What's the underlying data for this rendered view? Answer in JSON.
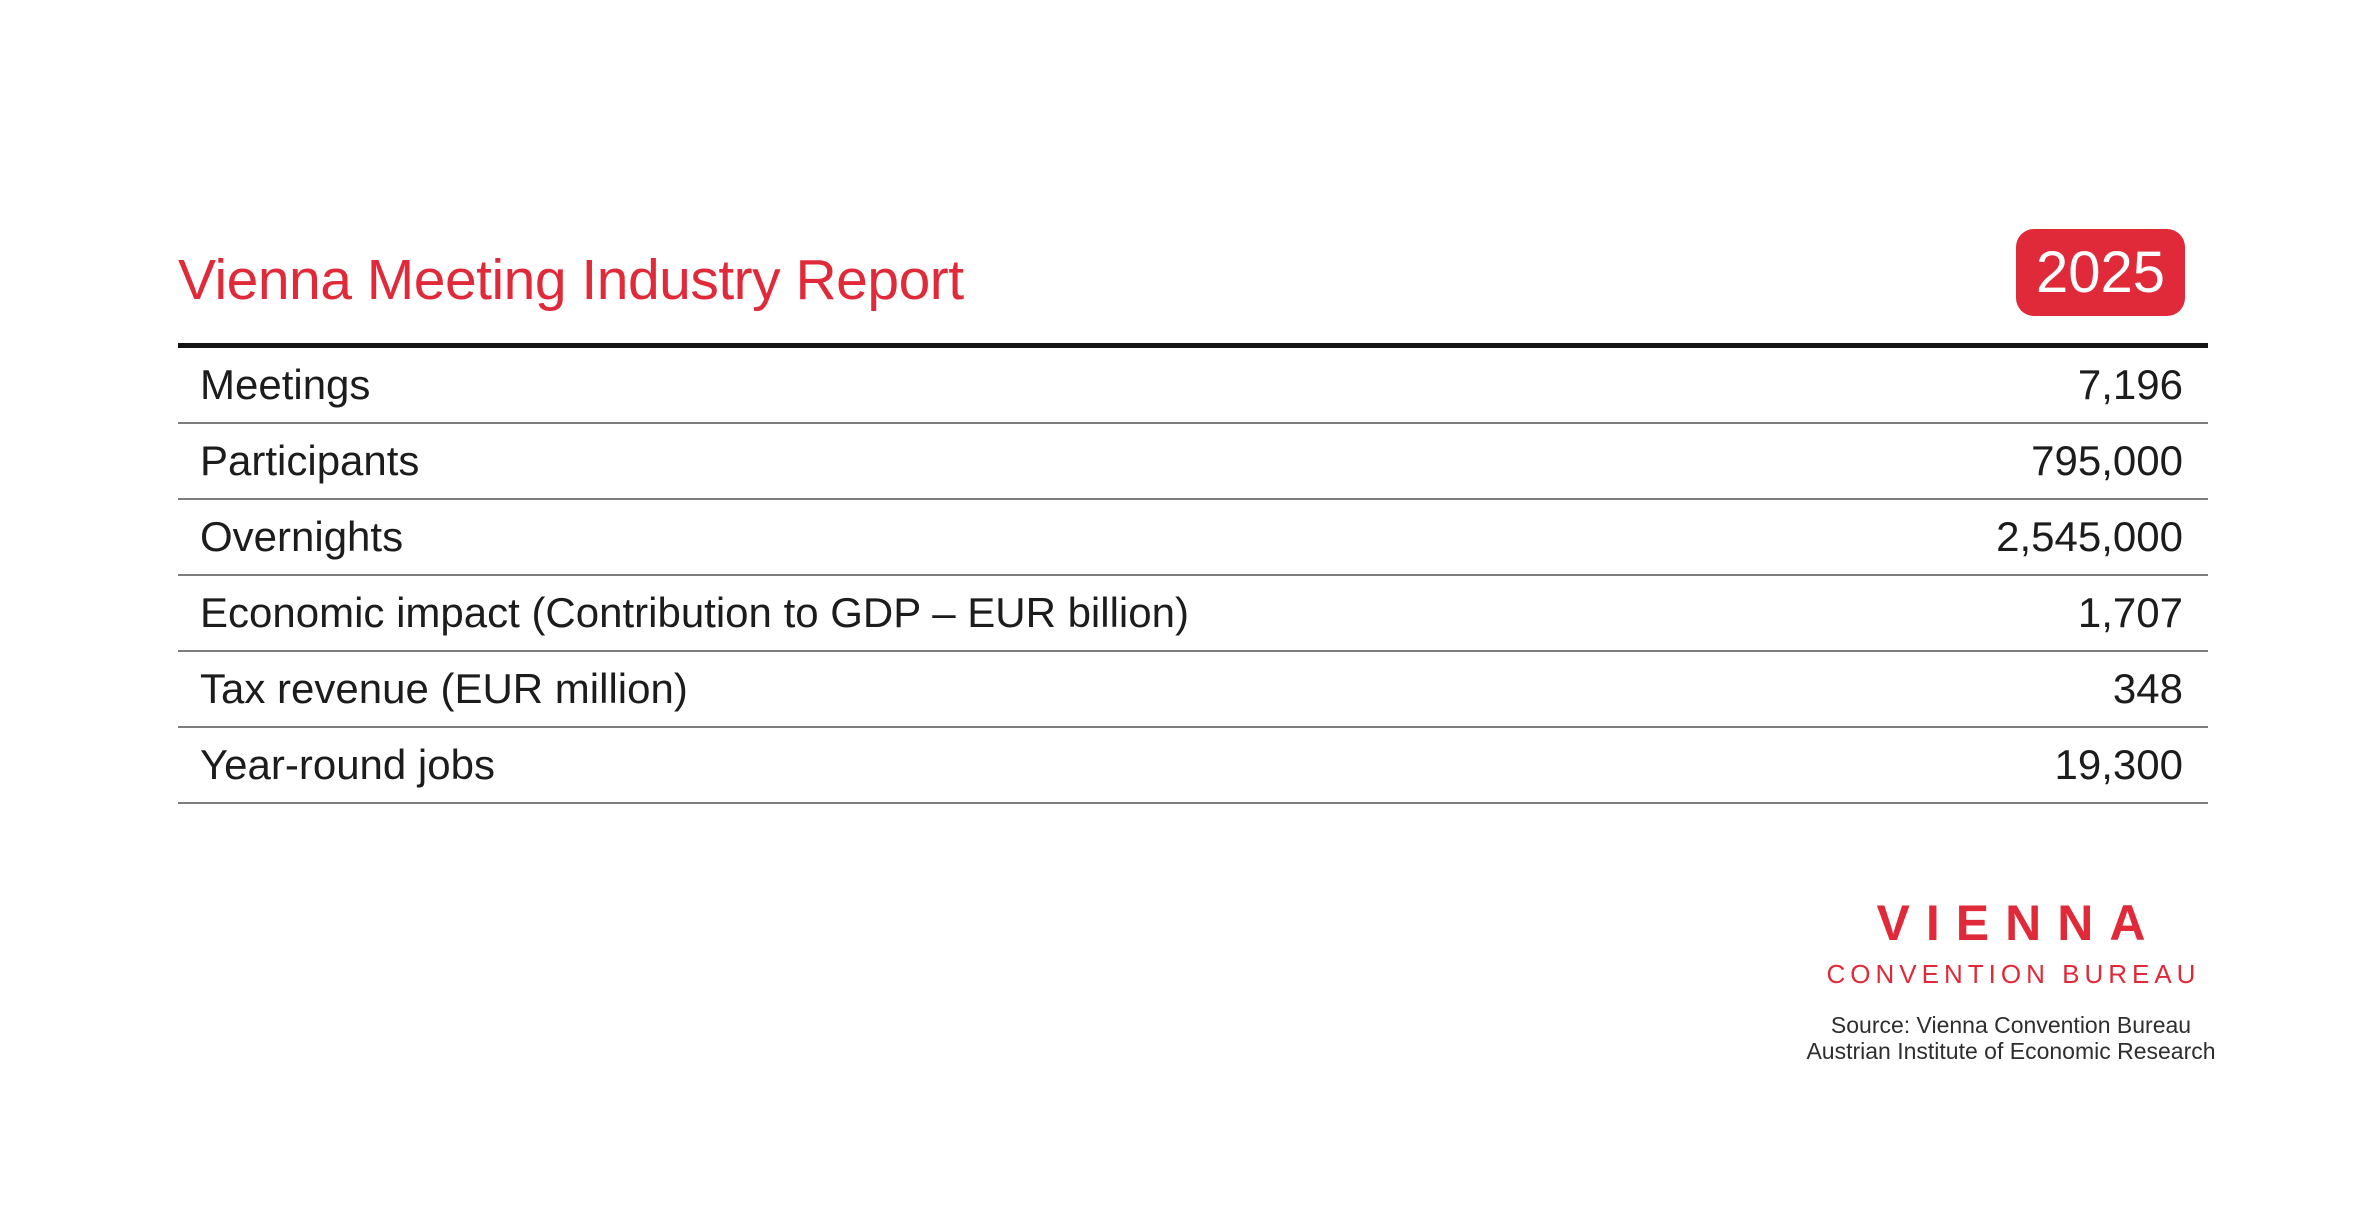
{
  "page": {
    "title": "Vienna Meeting Industry Report",
    "year_badge": "2025"
  },
  "table": {
    "rows": [
      {
        "label": "Meetings",
        "value": "7,196"
      },
      {
        "label": "Participants",
        "value": "795,000"
      },
      {
        "label": "Overnights",
        "value": "2,545,000"
      },
      {
        "label": "Economic impact (Contribution to GDP – EUR billion)",
        "value": "1,707"
      },
      {
        "label": "Tax revenue (EUR million)",
        "value": "348"
      },
      {
        "label": "Year-round jobs",
        "value": "19,300"
      }
    ]
  },
  "logo": {
    "wordmark": "VIENNA",
    "subtitle": "CONVENTION BUREAU"
  },
  "source": {
    "line1": "Source: Vienna Convention Bureau",
    "line2": "Austrian Institute of Economic Research"
  },
  "colors": {
    "accent_red": "#E02A3A",
    "text": "#1c1c1c",
    "separator_gray": "#7d7d7d",
    "top_rule_black": "#141414"
  },
  "chart_data": {
    "type": "table",
    "title": "Vienna Meeting Industry Report",
    "year": "2025",
    "categories": [
      "Meetings",
      "Participants",
      "Overnights",
      "Economic impact (Contribution to GDP – EUR billion)",
      "Tax revenue (EUR million)",
      "Year-round jobs"
    ],
    "values": [
      7196,
      795000,
      2545000,
      1707,
      348,
      19300
    ],
    "value_labels": [
      "7,196",
      "795,000",
      "2,545,000",
      "1,707",
      "348",
      "19,300"
    ],
    "source": [
      "Source: Vienna Convention Bureau",
      "Austrian Institute of Economic Research"
    ]
  }
}
